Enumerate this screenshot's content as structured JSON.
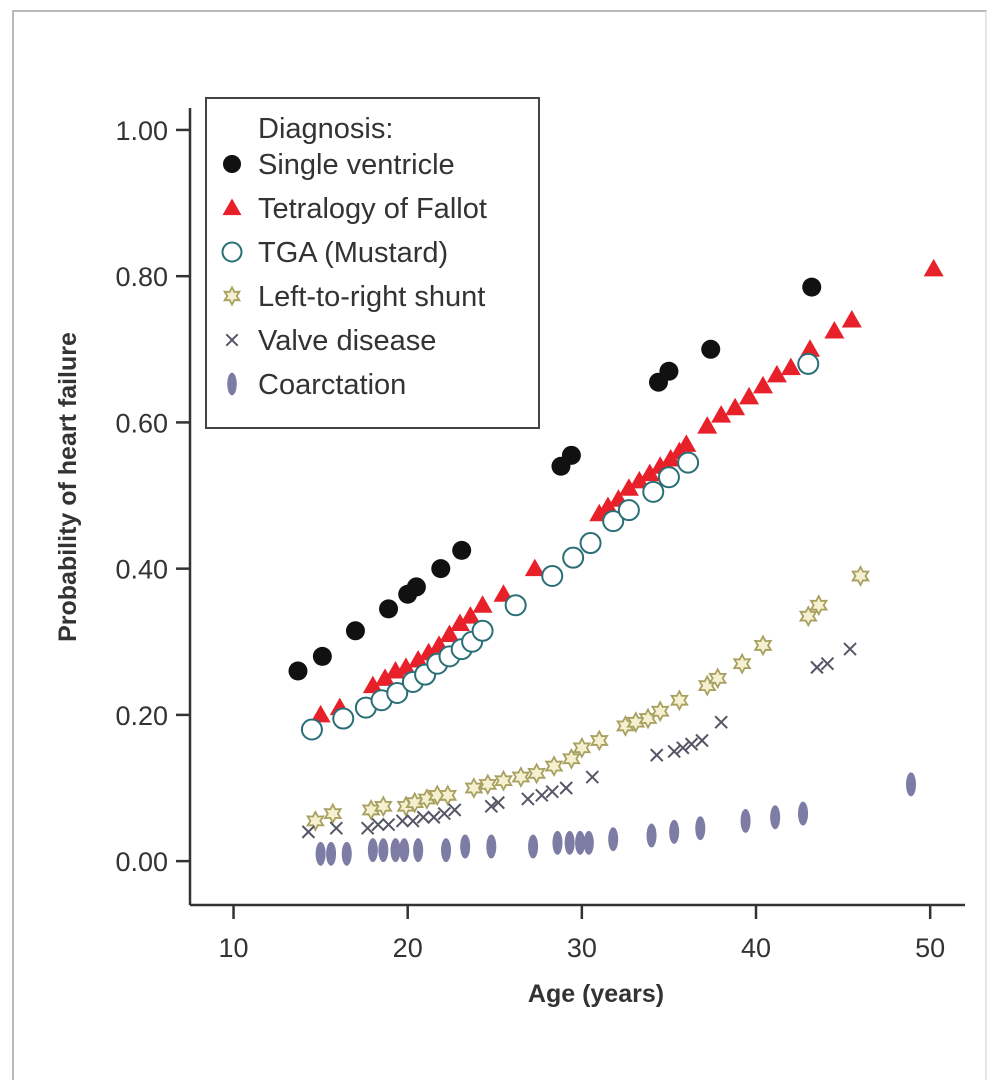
{
  "chart_data": {
    "type": "scatter",
    "xlabel": "Age (years)",
    "ylabel": "Probability of heart failure",
    "xlim": [
      7.5,
      52
    ],
    "ylim": [
      -0.06,
      1.03
    ],
    "xticks": [
      "10",
      "20",
      "30",
      "40",
      "50"
    ],
    "xtick_values": [
      10,
      20,
      30,
      40,
      50
    ],
    "yticks": [
      "0.00",
      "0.20",
      "0.40",
      "0.60",
      "0.80",
      "1.00"
    ],
    "ytick_values": [
      0,
      0.2,
      0.4,
      0.6,
      0.8,
      1.0
    ],
    "grid": false,
    "legend": {
      "position": "top-left",
      "title": "Diagnosis:"
    },
    "series": [
      {
        "name": "Single ventricle",
        "marker": "filled-circle",
        "color": "#111111",
        "points": [
          [
            13.7,
            0.26
          ],
          [
            15.1,
            0.28
          ],
          [
            17.0,
            0.315
          ],
          [
            18.9,
            0.345
          ],
          [
            20.0,
            0.365
          ],
          [
            20.5,
            0.375
          ],
          [
            21.9,
            0.4
          ],
          [
            23.1,
            0.425
          ],
          [
            28.8,
            0.54
          ],
          [
            29.4,
            0.555
          ],
          [
            34.4,
            0.655
          ],
          [
            35.0,
            0.67
          ],
          [
            37.4,
            0.7
          ],
          [
            43.2,
            0.785
          ]
        ]
      },
      {
        "name": "Tetralogy of Fallot",
        "marker": "filled-triangle",
        "color": "#e8202a",
        "points": [
          [
            15.0,
            0.2
          ],
          [
            16.1,
            0.21
          ],
          [
            18.0,
            0.24
          ],
          [
            18.7,
            0.25
          ],
          [
            19.3,
            0.26
          ],
          [
            19.9,
            0.265
          ],
          [
            20.6,
            0.275
          ],
          [
            21.2,
            0.285
          ],
          [
            21.8,
            0.295
          ],
          [
            22.4,
            0.31
          ],
          [
            23.0,
            0.325
          ],
          [
            23.6,
            0.335
          ],
          [
            24.3,
            0.35
          ],
          [
            25.5,
            0.365
          ],
          [
            27.3,
            0.4
          ],
          [
            31.0,
            0.475
          ],
          [
            31.5,
            0.485
          ],
          [
            32.1,
            0.495
          ],
          [
            32.7,
            0.51
          ],
          [
            33.3,
            0.52
          ],
          [
            33.9,
            0.53
          ],
          [
            34.5,
            0.54
          ],
          [
            35.1,
            0.55
          ],
          [
            35.6,
            0.56
          ],
          [
            36.0,
            0.57
          ],
          [
            37.2,
            0.595
          ],
          [
            38.0,
            0.61
          ],
          [
            38.8,
            0.62
          ],
          [
            39.6,
            0.635
          ],
          [
            40.4,
            0.65
          ],
          [
            41.2,
            0.665
          ],
          [
            42.0,
            0.675
          ],
          [
            43.1,
            0.7
          ],
          [
            44.5,
            0.725
          ],
          [
            45.5,
            0.74
          ],
          [
            50.2,
            0.81
          ]
        ]
      },
      {
        "name": "TGA (Mustard)",
        "marker": "open-circle",
        "color": "#2a6f77",
        "points": [
          [
            14.5,
            0.18
          ],
          [
            16.3,
            0.195
          ],
          [
            17.6,
            0.21
          ],
          [
            18.5,
            0.22
          ],
          [
            19.4,
            0.23
          ],
          [
            20.3,
            0.245
          ],
          [
            21.0,
            0.255
          ],
          [
            21.7,
            0.27
          ],
          [
            22.4,
            0.28
          ],
          [
            23.1,
            0.29
          ],
          [
            23.7,
            0.3
          ],
          [
            24.3,
            0.315
          ],
          [
            26.2,
            0.35
          ],
          [
            28.3,
            0.39
          ],
          [
            29.5,
            0.415
          ],
          [
            30.5,
            0.435
          ],
          [
            31.8,
            0.465
          ],
          [
            32.7,
            0.48
          ],
          [
            34.1,
            0.505
          ],
          [
            35.0,
            0.525
          ],
          [
            36.1,
            0.545
          ],
          [
            43.0,
            0.68
          ]
        ]
      },
      {
        "name": "Left-to-right shunt",
        "marker": "open-star",
        "color": "#a8a060",
        "points": [
          [
            14.7,
            0.055
          ],
          [
            15.7,
            0.065
          ],
          [
            17.9,
            0.07
          ],
          [
            18.6,
            0.075
          ],
          [
            19.9,
            0.075
          ],
          [
            20.4,
            0.08
          ],
          [
            21.1,
            0.085
          ],
          [
            21.7,
            0.09
          ],
          [
            22.3,
            0.09
          ],
          [
            23.8,
            0.1
          ],
          [
            24.6,
            0.105
          ],
          [
            25.5,
            0.11
          ],
          [
            26.5,
            0.115
          ],
          [
            27.4,
            0.12
          ],
          [
            28.4,
            0.13
          ],
          [
            29.4,
            0.14
          ],
          [
            30.0,
            0.155
          ],
          [
            31.0,
            0.165
          ],
          [
            32.5,
            0.185
          ],
          [
            33.1,
            0.19
          ],
          [
            33.8,
            0.195
          ],
          [
            34.5,
            0.205
          ],
          [
            35.6,
            0.22
          ],
          [
            37.2,
            0.24
          ],
          [
            37.8,
            0.25
          ],
          [
            39.2,
            0.27
          ],
          [
            40.4,
            0.295
          ],
          [
            43.0,
            0.335
          ],
          [
            43.6,
            0.35
          ],
          [
            46.0,
            0.39
          ]
        ]
      },
      {
        "name": "Valve disease",
        "marker": "cross",
        "color": "#555566",
        "points": [
          [
            14.3,
            0.04
          ],
          [
            15.9,
            0.045
          ],
          [
            17.7,
            0.045
          ],
          [
            18.3,
            0.05
          ],
          [
            18.9,
            0.05
          ],
          [
            19.7,
            0.055
          ],
          [
            20.3,
            0.055
          ],
          [
            20.9,
            0.06
          ],
          [
            21.5,
            0.06
          ],
          [
            22.1,
            0.065
          ],
          [
            22.7,
            0.07
          ],
          [
            24.8,
            0.075
          ],
          [
            25.2,
            0.08
          ],
          [
            26.9,
            0.085
          ],
          [
            27.7,
            0.09
          ],
          [
            28.3,
            0.095
          ],
          [
            29.1,
            0.1
          ],
          [
            30.6,
            0.115
          ],
          [
            34.3,
            0.145
          ],
          [
            35.3,
            0.15
          ],
          [
            35.8,
            0.155
          ],
          [
            36.3,
            0.16
          ],
          [
            36.9,
            0.165
          ],
          [
            38.0,
            0.19
          ],
          [
            43.5,
            0.265
          ],
          [
            44.1,
            0.27
          ],
          [
            45.4,
            0.29
          ]
        ]
      },
      {
        "name": "Coarctation",
        "marker": "filled-ellipse",
        "color": "#7c7ca4",
        "points": [
          [
            15.0,
            0.01
          ],
          [
            15.6,
            0.01
          ],
          [
            16.5,
            0.01
          ],
          [
            18.0,
            0.015
          ],
          [
            18.6,
            0.015
          ],
          [
            19.3,
            0.015
          ],
          [
            19.8,
            0.015
          ],
          [
            20.6,
            0.015
          ],
          [
            22.2,
            0.015
          ],
          [
            23.3,
            0.02
          ],
          [
            24.8,
            0.02
          ],
          [
            27.2,
            0.02
          ],
          [
            28.6,
            0.025
          ],
          [
            29.3,
            0.025
          ],
          [
            29.9,
            0.025
          ],
          [
            30.4,
            0.025
          ],
          [
            31.8,
            0.03
          ],
          [
            34.0,
            0.035
          ],
          [
            35.3,
            0.04
          ],
          [
            36.8,
            0.045
          ],
          [
            39.4,
            0.055
          ],
          [
            41.1,
            0.06
          ],
          [
            42.7,
            0.065
          ],
          [
            48.9,
            0.105
          ]
        ]
      }
    ]
  }
}
